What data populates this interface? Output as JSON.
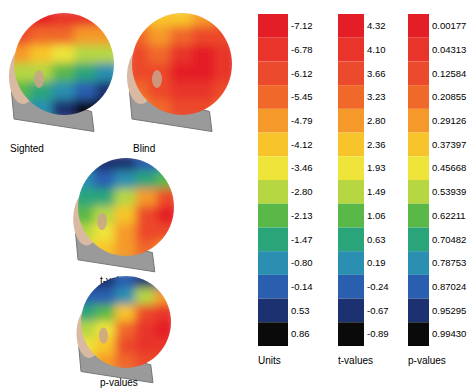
{
  "chart_data": {
    "type": "heatmap",
    "color_bars": [
      {
        "title": "Units",
        "ticks": [
          -7.12,
          -6.78,
          -6.12,
          -5.45,
          -4.79,
          -4.12,
          -3.46,
          {
            "value": -2.8,
            "label": "-2.80"
          },
          -2.13,
          -1.47,
          {
            "value": -0.8,
            "label": "-0.80"
          },
          -0.14,
          0.53,
          0.86
        ],
        "colors": [
          "#e41e26",
          "#e8342a",
          "#ec4a2c",
          "#f0682a",
          "#f59a2a",
          "#f8c42c",
          "#eee43a",
          "#b6d642",
          "#5ab848",
          "#2aa57a",
          "#2a8fb0",
          "#2a5fb0",
          "#1c3270",
          "#0a0a0a"
        ],
        "maps": [
          {
            "title": "Sighted",
            "cells": [
              [
                -7.12,
                -7.12,
                -6.78,
                -6.78,
                -6.12
              ],
              [
                -6.12,
                -5.45,
                -5.45,
                -4.79,
                -4.79
              ],
              [
                -4.79,
                -4.12,
                -3.46,
                -2.8,
                -2.8
              ],
              [
                -2.8,
                -2.8,
                -2.13,
                -1.47,
                -0.8
              ],
              [
                -2.13,
                -1.47,
                -0.8,
                -0.14,
                0.53
              ],
              [
                -1.47,
                -0.8,
                0.53,
                0.86,
                0.86
              ]
            ]
          },
          {
            "title": "Blind",
            "cells": [
              [
                -4.79,
                -4.12,
                -4.12,
                -4.79,
                -5.45
              ],
              [
                -5.45,
                -4.79,
                -5.45,
                -6.12,
                -6.12
              ],
              [
                -6.12,
                -5.45,
                -6.78,
                -7.12,
                -6.78
              ],
              [
                -6.12,
                -6.12,
                -7.12,
                -7.12,
                -6.78
              ],
              [
                -5.45,
                -6.12,
                -6.78,
                -6.78,
                -6.12
              ],
              [
                -4.79,
                -5.45,
                -6.12,
                -6.12,
                -5.45
              ]
            ]
          }
        ]
      },
      {
        "title": "t-values",
        "ticks": [
          4.32,
          {
            "value": 4.1,
            "label": "4.10"
          },
          3.66,
          3.23,
          {
            "value": 2.8,
            "label": "2.80"
          },
          2.36,
          1.93,
          1.49,
          1.06,
          0.63,
          0.19,
          -0.24,
          -0.67,
          -0.89
        ],
        "colors": [
          "#e41e26",
          "#e8342a",
          "#ec4a2c",
          "#f0682a",
          "#f59a2a",
          "#f8c42c",
          "#eee43a",
          "#b6d642",
          "#5ab848",
          "#2aa57a",
          "#2a8fb0",
          "#2a5fb0",
          "#1c3270",
          "#0a0a0a"
        ],
        "maps": [
          {
            "title": "t-values",
            "cells": [
              [
                -0.24,
                -0.67,
                -0.67,
                -0.24,
                0.19
              ],
              [
                0.19,
                -0.24,
                0.19,
                0.63,
                1.06
              ],
              [
                0.63,
                0.63,
                1.49,
                2.8,
                3.66
              ],
              [
                1.06,
                1.49,
                2.36,
                3.66,
                4.32
              ],
              [
                1.49,
                1.93,
                2.8,
                3.66,
                3.66
              ],
              [
                1.93,
                2.36,
                2.8,
                3.23,
                2.8
              ]
            ]
          }
        ]
      },
      {
        "title": "p-values",
        "ticks": [
          0.00177,
          0.04313,
          0.12584,
          0.20855,
          0.29126,
          0.37397,
          0.45668,
          0.53939,
          0.62211,
          0.70482,
          0.78753,
          0.87024,
          0.95295,
          {
            "value": 0.9943,
            "label": "0.99430"
          }
        ],
        "colors": [
          "#e41e26",
          "#e8342a",
          "#ec4a2c",
          "#f0682a",
          "#f59a2a",
          "#f8c42c",
          "#eee43a",
          "#b6d642",
          "#5ab848",
          "#2aa57a",
          "#2a8fb0",
          "#2a5fb0",
          "#1c3270",
          "#0a0a0a"
        ],
        "maps": [
          {
            "title": "p-values",
            "cells": [
              [
                0.9943,
                0.95295,
                0.87024,
                0.95295,
                0.87024
              ],
              [
                0.87024,
                0.87024,
                0.78753,
                0.53939,
                0.29126
              ],
              [
                0.70482,
                0.62211,
                0.37397,
                0.12584,
                0.04313
              ],
              [
                0.53939,
                0.45668,
                0.20855,
                0.04313,
                0.00177
              ],
              [
                0.45668,
                0.37397,
                0.12584,
                0.04313,
                0.04313
              ],
              [
                0.37397,
                0.29126,
                0.20855,
                0.12584,
                0.12584
              ]
            ]
          }
        ]
      }
    ]
  }
}
